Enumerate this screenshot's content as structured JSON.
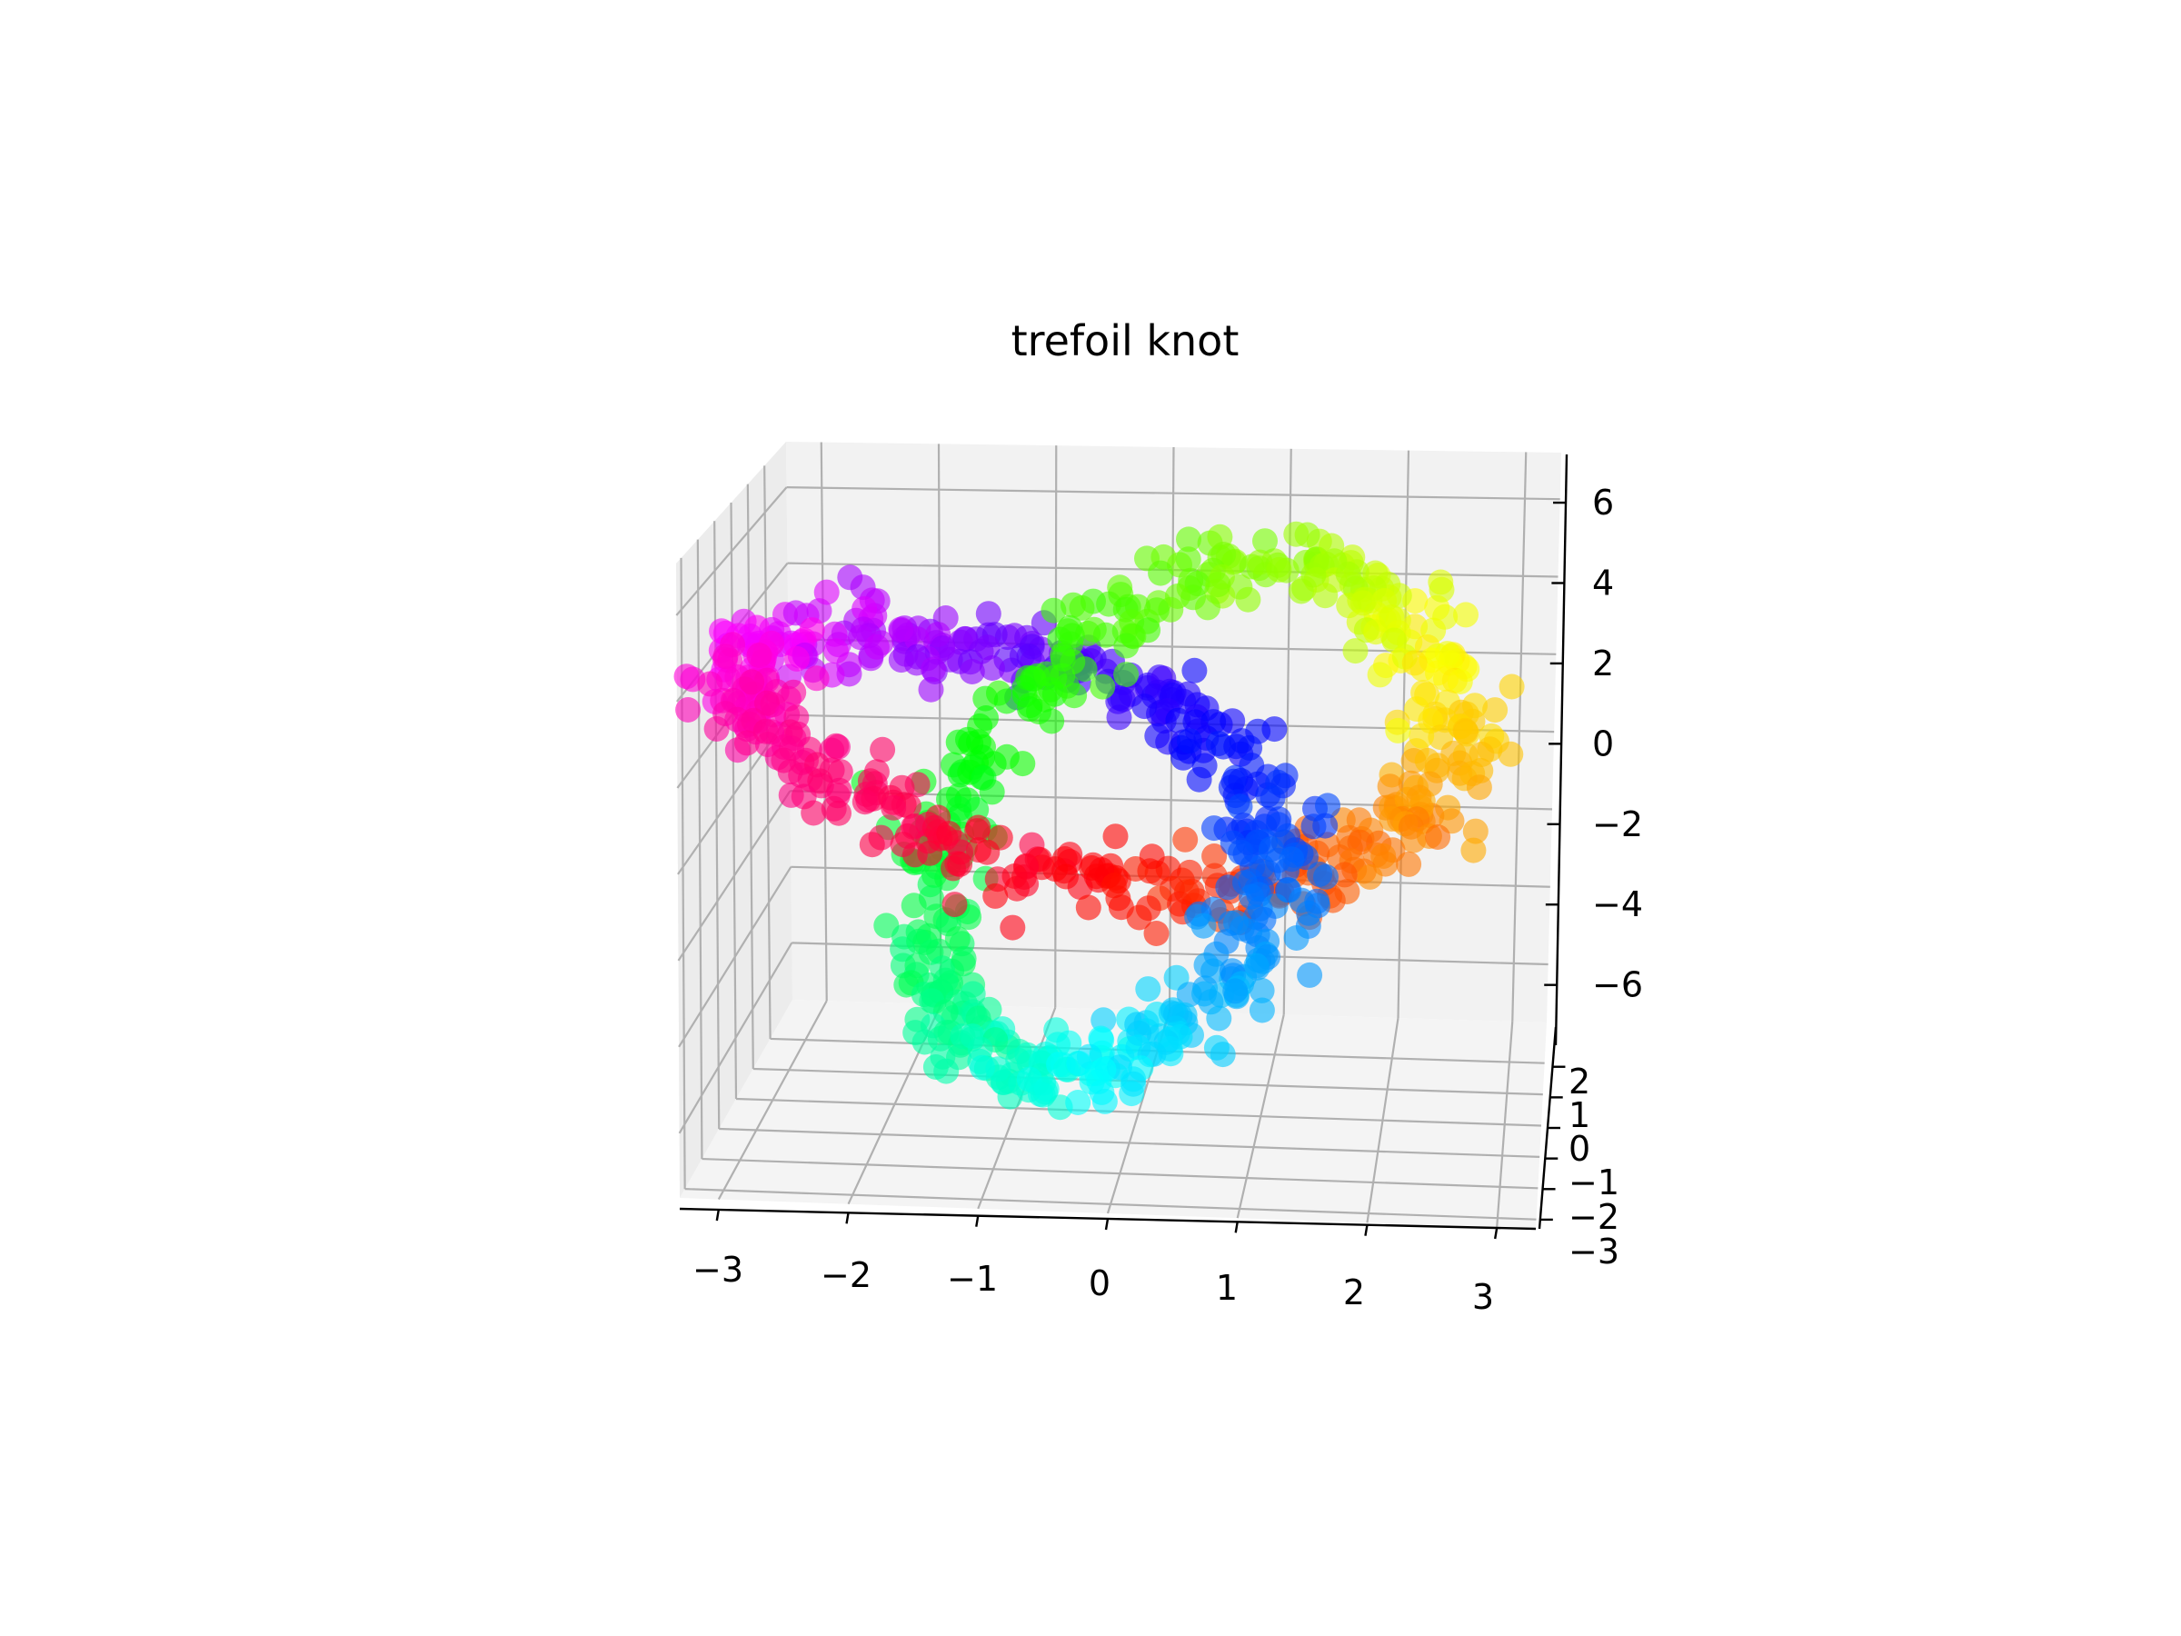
{
  "chart_data": {
    "type": "scatter",
    "projection": "3d",
    "title": "trefoil knot",
    "xlabel": "",
    "ylabel": "",
    "zlabel": "",
    "grid": true,
    "colormap": "hsv",
    "xlim": [
      -3.3,
      3.3
    ],
    "ylim": [
      -3.3,
      3.3
    ],
    "zlim": [
      -7.5,
      7.2
    ],
    "xticks": [
      "−3",
      "−2",
      "−1",
      "0",
      "1",
      "2",
      "3"
    ],
    "yticks": [
      "−3",
      "−2",
      "−1",
      "0",
      "1",
      "2"
    ],
    "zticks": [
      "−6",
      "−4",
      "−2",
      "0",
      "2",
      "4",
      "6"
    ],
    "curve": {
      "parametric": "x = sin(t) + 2 sin(2t), y = cos(t) - 2 cos(2t), z = -sin(3t)",
      "samples": 1000,
      "noise_sd": 0.2
    },
    "series": [
      {
        "points_sample": [
          {
            "t_fraction": 0.0,
            "x": 0.0,
            "y": -1.0,
            "z": 0.0,
            "color": "#ff0000"
          },
          {
            "t_fraction": 0.083,
            "x": 2.23,
            "y": -0.13,
            "z": -1.0,
            "color": "#ff8000"
          },
          {
            "t_fraction": 0.167,
            "x": 2.6,
            "y": 1.5,
            "z": 0.0,
            "color": "#ffff00"
          },
          {
            "t_fraction": 0.25,
            "x": 1.0,
            "y": 2.0,
            "z": 1.0,
            "color": "#80ff00"
          },
          {
            "t_fraction": 0.333,
            "x": -0.87,
            "y": 1.5,
            "z": 0.0,
            "color": "#00ff40"
          },
          {
            "t_fraction": 0.417,
            "x": -1.23,
            "y": 0.13,
            "z": -1.0,
            "color": "#00ffc0"
          },
          {
            "t_fraction": 0.5,
            "x": 0.0,
            "y": -3.0,
            "z": 0.0,
            "color": "#00ffff"
          },
          {
            "t_fraction": 0.583,
            "x": 1.23,
            "y": 0.13,
            "z": 1.0,
            "color": "#0080ff"
          },
          {
            "t_fraction": 0.667,
            "x": 0.87,
            "y": 1.5,
            "z": 0.0,
            "color": "#0000ff"
          },
          {
            "t_fraction": 0.75,
            "x": -1.0,
            "y": 2.0,
            "z": -1.0,
            "color": "#8000ff"
          },
          {
            "t_fraction": 0.833,
            "x": -2.6,
            "y": 1.5,
            "z": 0.0,
            "color": "#ff00ff"
          },
          {
            "t_fraction": 0.917,
            "x": -2.23,
            "y": -0.13,
            "z": 1.0,
            "color": "#ff0080"
          }
        ]
      }
    ]
  }
}
